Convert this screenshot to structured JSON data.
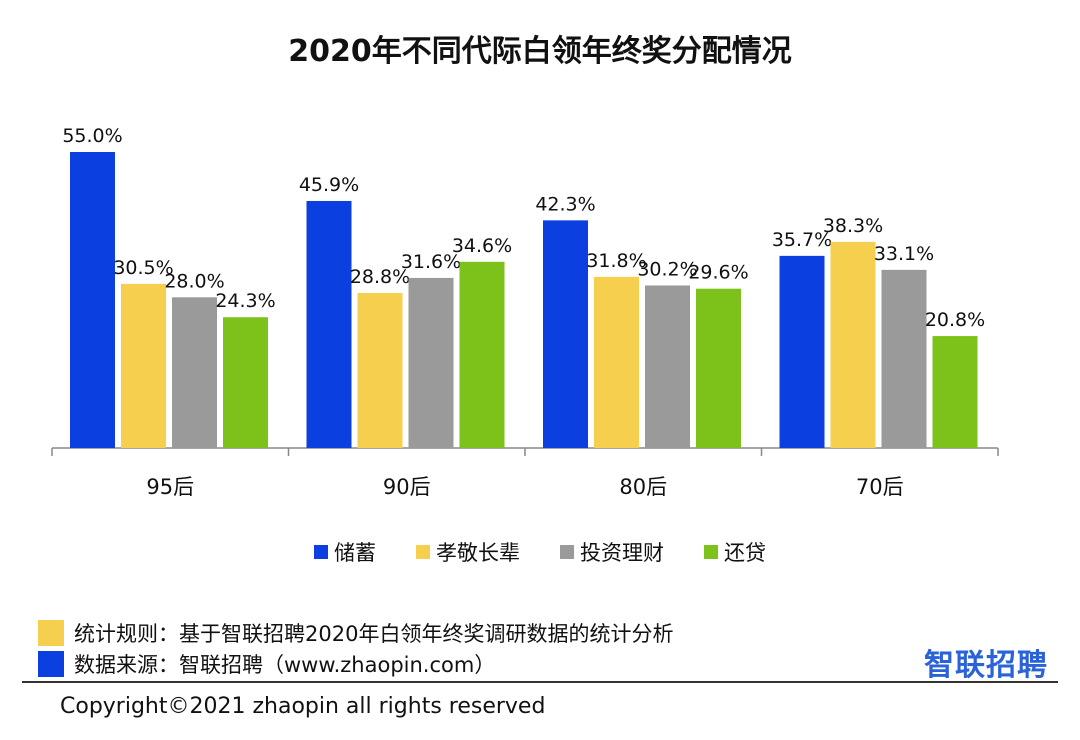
{
  "chart_data": {
    "type": "bar",
    "title": "2020年不同代际白领年终奖分配情况",
    "categories": [
      "95后",
      "90后",
      "80后",
      "70后"
    ],
    "series": [
      {
        "name": "储蓄",
        "color": "#0b3fe0",
        "values": [
          55.0,
          45.9,
          42.3,
          35.7
        ]
      },
      {
        "name": "孝敬长辈",
        "color": "#f6cf4f",
        "values": [
          30.5,
          28.8,
          31.8,
          38.3
        ]
      },
      {
        "name": "投资理财",
        "color": "#9a9a9a",
        "values": [
          28.0,
          31.6,
          30.2,
          33.1
        ]
      },
      {
        "name": "还贷",
        "color": "#7cc21a",
        "values": [
          24.3,
          34.6,
          29.6,
          20.8
        ]
      }
    ],
    "value_labels": [
      [
        "55.0%",
        "45.9%",
        "42.3%",
        "35.7%"
      ],
      [
        "30.5%",
        "28.8%",
        "31.8%",
        "38.3%"
      ],
      [
        "28.0%",
        "31.6%",
        "30.2%",
        "33.1%"
      ],
      [
        "24.3%",
        "34.6%",
        "29.6%",
        "20.8%"
      ]
    ],
    "ylim": [
      0,
      60
    ],
    "grid": false,
    "legend_position": "bottom"
  },
  "notes": {
    "rules_label": "统计规则：基于智联招聘2020年白领年终奖调研数据的统计分析",
    "rules_color": "#f6cf4f",
    "source_label": "数据来源：智联招聘（www.zhaopin.com）",
    "source_color": "#0b3fe0"
  },
  "brand": {
    "logo_text": "智联招聘"
  },
  "footer": {
    "copyright": "Copyright©2021 zhaopin all rights reserved"
  }
}
